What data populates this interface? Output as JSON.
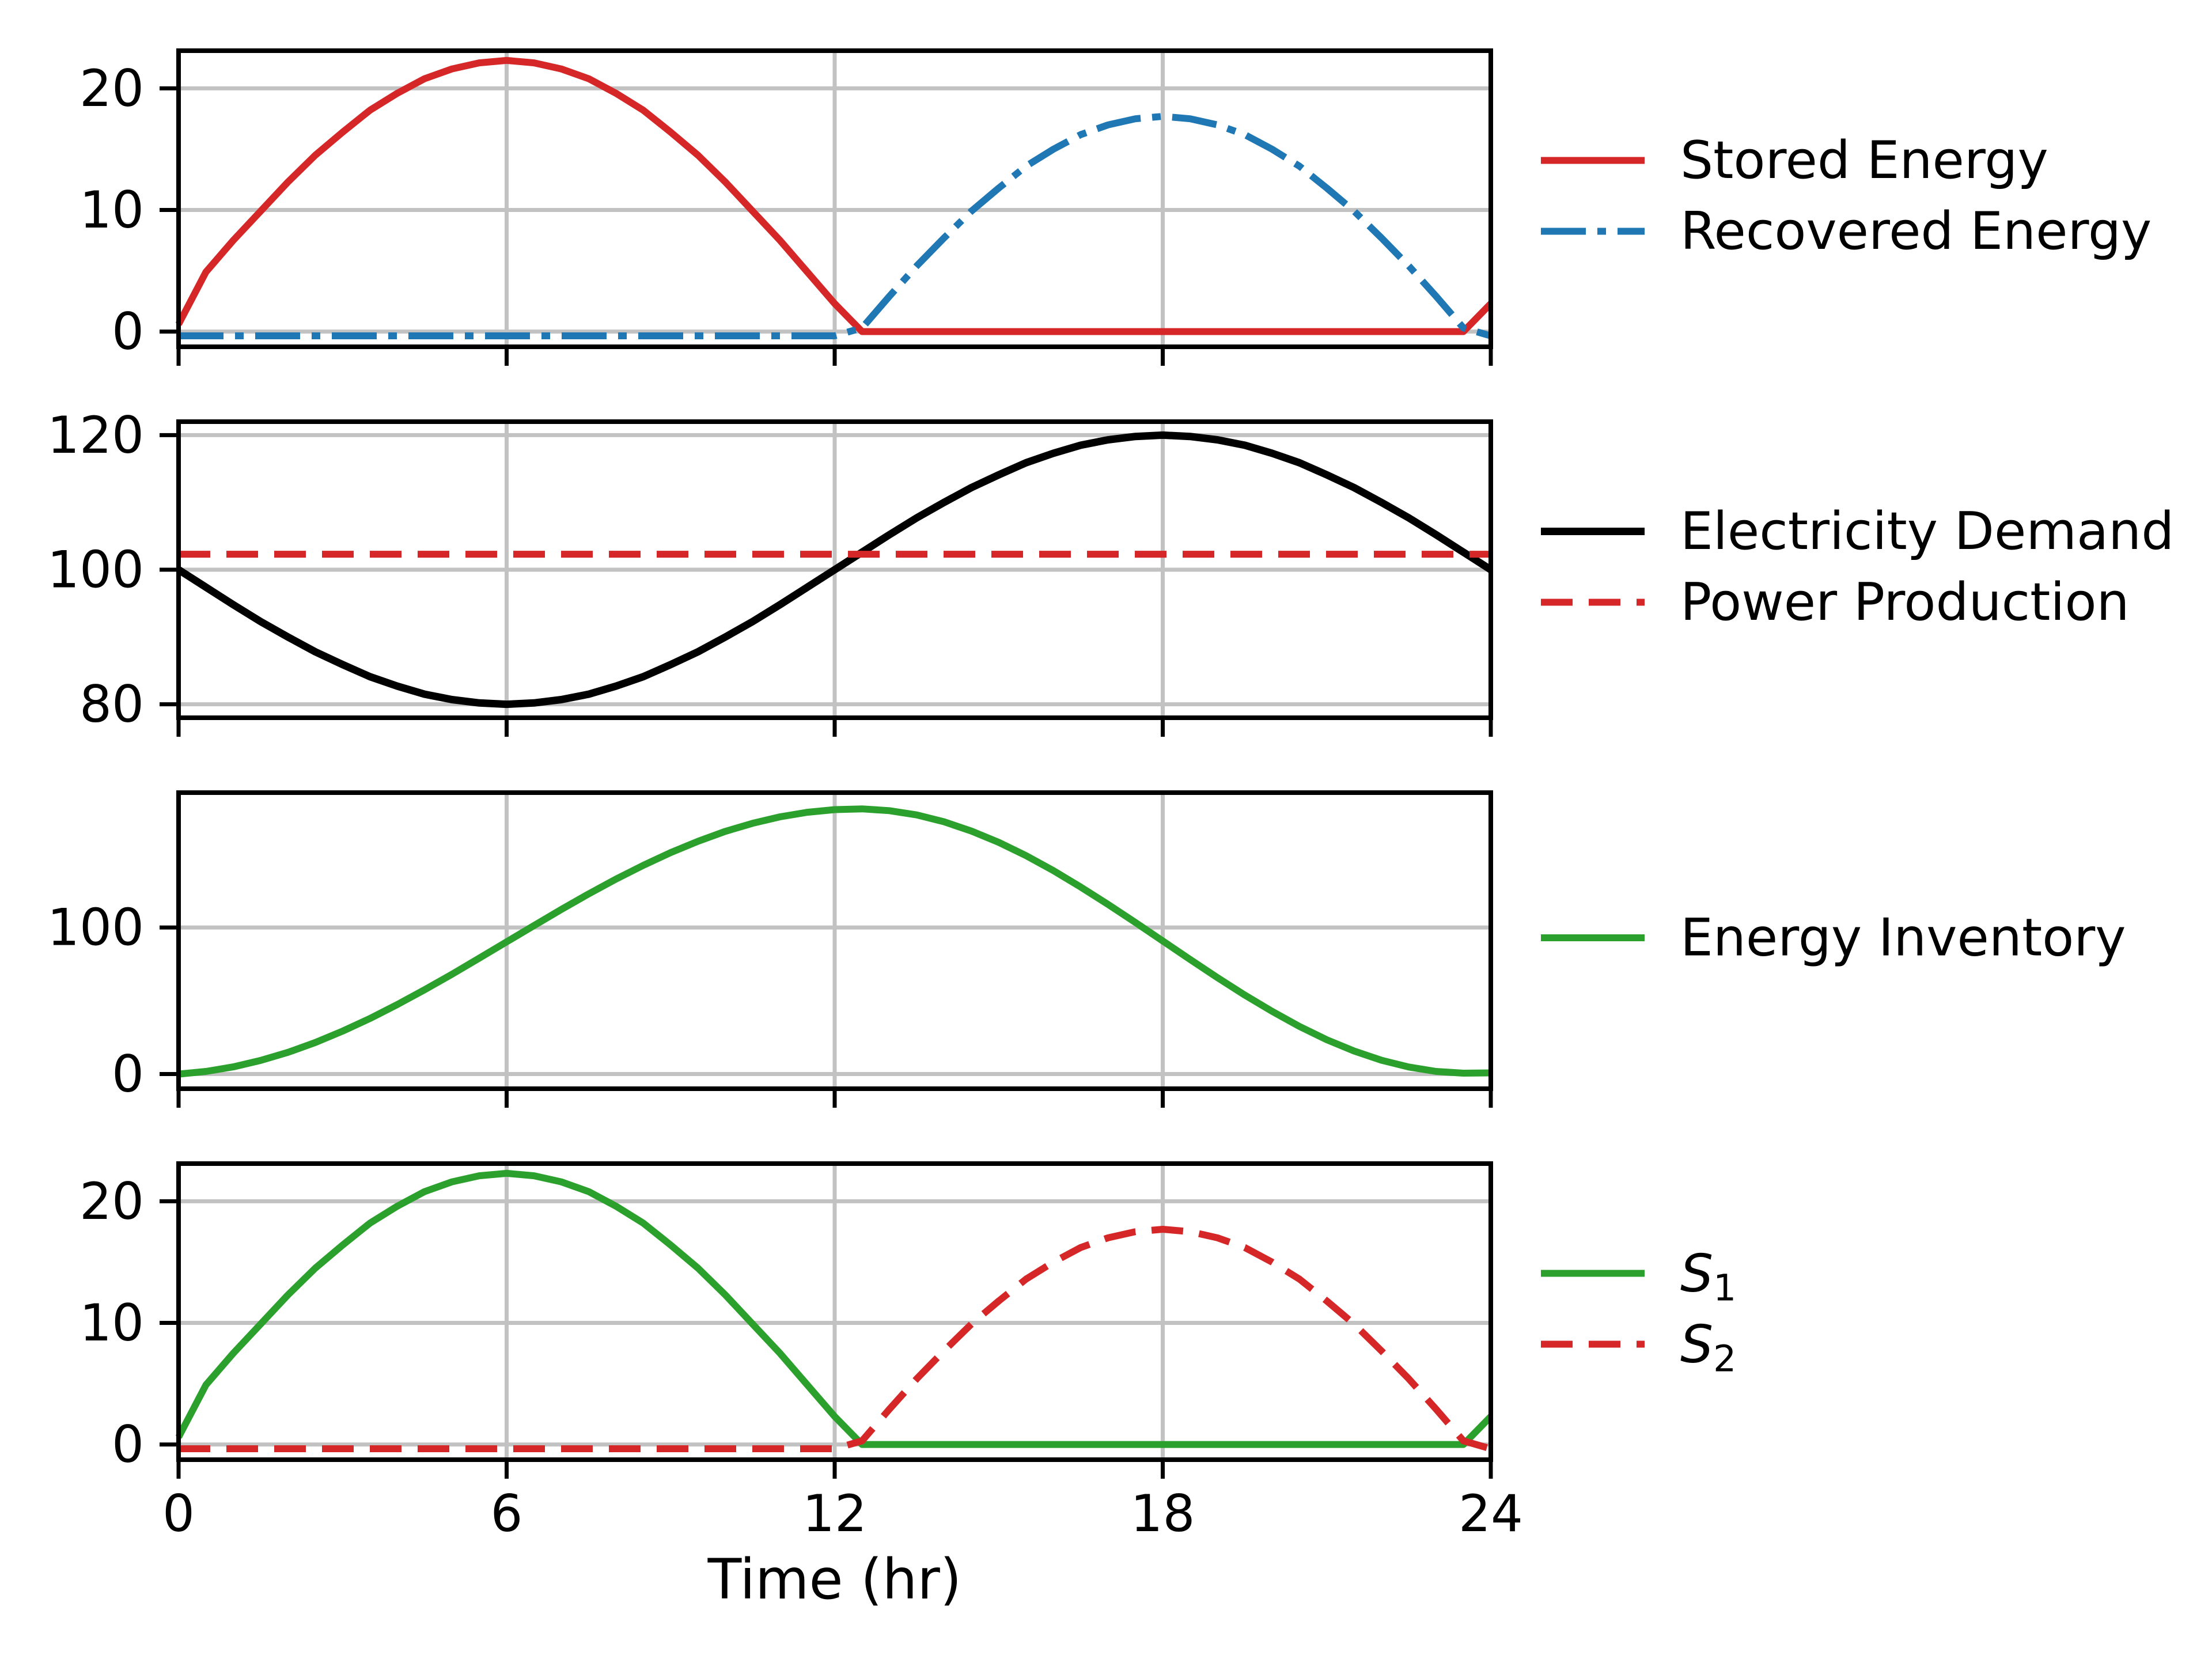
{
  "figure": {
    "xlabel": "Time (hr)",
    "xlim": [
      0,
      24
    ],
    "x_ticks": [
      0,
      6,
      12,
      18,
      24
    ],
    "x_tick_labels": [
      "0",
      "6",
      "12",
      "18",
      "24"
    ],
    "background": "#ffffff",
    "grid_color": "#c2c2c2",
    "axis_color": "#000000",
    "palette": {
      "red": "#d62728",
      "blue": "#1f77b4",
      "green": "#2ca02c",
      "black": "#000000"
    },
    "x": [
      0,
      0.5,
      1,
      1.5,
      2,
      2.5,
      3,
      3.5,
      4,
      4.5,
      5,
      5.5,
      6,
      6.5,
      7,
      7.5,
      8,
      8.5,
      9,
      9.5,
      10,
      10.5,
      11,
      11.5,
      12,
      12.5,
      13,
      13.5,
      14,
      14.5,
      15,
      15.5,
      16,
      16.5,
      17,
      17.5,
      18,
      18.5,
      19,
      19.5,
      20,
      20.5,
      21,
      21.5,
      22,
      22.5,
      23,
      23.5,
      24
    ]
  },
  "chart_data": [
    {
      "type": "line",
      "title": "",
      "xlabel": "",
      "ylabel": "",
      "ylim": [
        -1.25,
        23.1
      ],
      "y_ticks": [
        0,
        10,
        20
      ],
      "grid": true,
      "legend_position": "right",
      "series": [
        {
          "name": "Stored Energy",
          "label": "Stored Energy",
          "color": "#d62728",
          "style": "solid",
          "width": 12,
          "y": [
            0.6,
            4.9,
            7.5,
            9.9,
            12.3,
            14.5,
            16.4,
            18.2,
            19.6,
            20.8,
            21.6,
            22.1,
            22.3,
            22.1,
            21.6,
            20.8,
            19.6,
            18.2,
            16.4,
            14.5,
            12.3,
            9.9,
            7.5,
            4.9,
            2.3,
            0,
            0,
            0,
            0,
            0,
            0,
            0,
            0,
            0,
            0,
            0,
            0,
            0,
            0,
            0,
            0,
            0,
            0,
            0,
            0,
            0,
            0,
            0,
            2.3
          ]
        },
        {
          "name": "Recovered Energy",
          "label": "Recovered Energy",
          "color": "#1f77b4",
          "style": "dashdot",
          "width": 12,
          "y": [
            -0.35,
            -0.35,
            -0.35,
            -0.35,
            -0.35,
            -0.35,
            -0.35,
            -0.35,
            -0.35,
            -0.35,
            -0.35,
            -0.35,
            -0.35,
            -0.35,
            -0.35,
            -0.35,
            -0.35,
            -0.35,
            -0.35,
            -0.35,
            -0.35,
            -0.35,
            -0.35,
            -0.35,
            -0.35,
            0.3,
            2.9,
            5.4,
            7.7,
            9.9,
            11.8,
            13.6,
            15,
            16.2,
            17,
            17.5,
            17.7,
            17.5,
            17,
            16.2,
            15,
            13.6,
            11.8,
            9.9,
            7.7,
            5.4,
            2.9,
            0.3,
            -0.35
          ]
        }
      ]
    },
    {
      "type": "line",
      "title": "",
      "xlabel": "",
      "ylabel": "",
      "ylim": [
        78,
        122
      ],
      "y_ticks": [
        80,
        100,
        120
      ],
      "grid": true,
      "legend_position": "right",
      "series": [
        {
          "name": "Electricity Demand",
          "label": "Electricity Demand",
          "color": "#000000",
          "style": "solid",
          "width": 13,
          "y": [
            100,
            97.4,
            94.8,
            92.3,
            90,
            87.8,
            85.9,
            84.1,
            82.7,
            81.5,
            80.7,
            80.2,
            80,
            80.2,
            80.7,
            81.5,
            82.7,
            84.1,
            85.9,
            87.8,
            90,
            92.3,
            94.8,
            97.4,
            100,
            102.6,
            105.2,
            107.7,
            110,
            112.2,
            114.1,
            115.9,
            117.3,
            118.5,
            119.3,
            119.8,
            120,
            119.8,
            119.3,
            118.5,
            117.3,
            115.9,
            114.1,
            112.2,
            110,
            107.7,
            105.2,
            102.6,
            100
          ]
        },
        {
          "name": "Power Production",
          "label": "Power Production",
          "color": "#d62728",
          "style": "dashed",
          "width": 12,
          "x": [
            0,
            24
          ],
          "y": [
            102.3,
            102.3
          ]
        }
      ]
    },
    {
      "type": "line",
      "title": "",
      "xlabel": "",
      "ylabel": "",
      "ylim": [
        -10,
        192
      ],
      "y_ticks": [
        0,
        100
      ],
      "grid": true,
      "legend_position": "right",
      "series": [
        {
          "name": "Energy Inventory",
          "label": "Energy Inventory",
          "color": "#2ca02c",
          "style": "solid",
          "width": 12,
          "y": [
            0,
            1.8,
            4.9,
            9.3,
            14.8,
            21.5,
            29.3,
            37.9,
            47.4,
            57.5,
            68.1,
            79.1,
            90.2,
            101.3,
            112.3,
            122.9,
            133,
            142.4,
            151.1,
            158.8,
            165.6,
            171.1,
            175.5,
            178.6,
            180.4,
            180.9,
            179.7,
            176.8,
            172.1,
            165.8,
            158.1,
            149,
            138.8,
            127.6,
            115.7,
            103.4,
            90.8,
            78.2,
            65.8,
            53.9,
            42.8,
            32.5,
            23.4,
            15.7,
            9.4,
            4.8,
            1.8,
            0.6,
            0.8
          ]
        }
      ]
    },
    {
      "type": "line",
      "title": "",
      "xlabel": "Time (hr)",
      "ylabel": "",
      "ylim": [
        -1.25,
        23.1
      ],
      "y_ticks": [
        0,
        10,
        20
      ],
      "grid": true,
      "legend_position": "right",
      "series": [
        {
          "name": "S_1",
          "label": "S1",
          "label_main": "S",
          "label_sub": "1",
          "italic": true,
          "color": "#2ca02c",
          "style": "solid",
          "width": 12,
          "y": [
            0.6,
            4.9,
            7.5,
            9.9,
            12.3,
            14.5,
            16.4,
            18.2,
            19.6,
            20.8,
            21.6,
            22.1,
            22.3,
            22.1,
            21.6,
            20.8,
            19.6,
            18.2,
            16.4,
            14.5,
            12.3,
            9.9,
            7.5,
            4.9,
            2.3,
            0,
            0,
            0,
            0,
            0,
            0,
            0,
            0,
            0,
            0,
            0,
            0,
            0,
            0,
            0,
            0,
            0,
            0,
            0,
            0,
            0,
            0,
            0,
            2.3
          ]
        },
        {
          "name": "S_2",
          "label": "S2",
          "label_main": "S",
          "label_sub": "2",
          "italic": true,
          "color": "#d62728",
          "style": "dashed",
          "width": 12,
          "y": [
            -0.35,
            -0.35,
            -0.35,
            -0.35,
            -0.35,
            -0.35,
            -0.35,
            -0.35,
            -0.35,
            -0.35,
            -0.35,
            -0.35,
            -0.35,
            -0.35,
            -0.35,
            -0.35,
            -0.35,
            -0.35,
            -0.35,
            -0.35,
            -0.35,
            -0.35,
            -0.35,
            -0.35,
            -0.35,
            0.3,
            2.9,
            5.4,
            7.7,
            9.9,
            11.8,
            13.6,
            15,
            16.2,
            17,
            17.5,
            17.7,
            17.5,
            17,
            16.2,
            15,
            13.6,
            11.8,
            9.9,
            7.7,
            5.4,
            2.9,
            0.3,
            -0.35
          ]
        }
      ]
    }
  ]
}
